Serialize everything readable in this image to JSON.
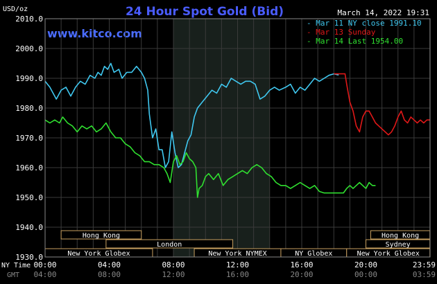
{
  "chart_data": {
    "type": "line",
    "title": "24 Hour Spot Gold (Bid)",
    "website": "www.kitco.com",
    "timestamp": "March 14, 2022 19:31",
    "ylabel": "USD/oz",
    "ylim": [
      1930,
      2010
    ],
    "y_ticks": [
      "1930.0",
      "1940.0",
      "1950.0",
      "1960.0",
      "1970.0",
      "1980.0",
      "1990.0",
      "2000.0",
      "2010.0"
    ],
    "x_axis_name": "NY Time",
    "x_ticks": [
      "00:00",
      "04:00",
      "08:00",
      "12:00",
      "16:00",
      "20:00",
      "23:59"
    ],
    "x2_axis_name": "GMT",
    "x2_ticks": [
      "04:00",
      "08:00",
      "12:00",
      "16:00",
      "20:00",
      "00:00",
      "03:59"
    ],
    "grid": true,
    "legend_position": "top-right",
    "highlight_band": [
      8.0,
      14.0
    ],
    "sessions": [
      {
        "label": "Hong Kong",
        "start": 1.0,
        "end": 6.0,
        "row": 1
      },
      {
        "label": "London",
        "start": 3.8,
        "end": 11.7,
        "row": 2
      },
      {
        "label": "New York Globex",
        "start": 0.0,
        "end": 6.7,
        "row": 3
      },
      {
        "label": "New York NYMEX",
        "start": 9.3,
        "end": 14.7,
        "row": 3
      },
      {
        "label": "NY Globex",
        "start": 14.7,
        "end": 18.8,
        "row": 3
      },
      {
        "label": "Hong Kong",
        "start": 20.3,
        "end": 23.99,
        "row": 1
      },
      {
        "label": "Sydney",
        "start": 20.0,
        "end": 23.99,
        "row": 2
      },
      {
        "label": "New York Globex",
        "start": 18.8,
        "end": 23.99,
        "row": 3
      }
    ],
    "series": [
      {
        "name": "Mar 11 NY close 1991.10",
        "color": "#40c8f0",
        "x": [
          0.0,
          0.3,
          0.7,
          1.0,
          1.3,
          1.6,
          1.9,
          2.2,
          2.5,
          2.8,
          3.1,
          3.3,
          3.5,
          3.7,
          3.9,
          4.1,
          4.3,
          4.6,
          4.8,
          5.1,
          5.4,
          5.7,
          6.0,
          6.2,
          6.4,
          6.5,
          6.7,
          6.9,
          7.1,
          7.3,
          7.5,
          7.7,
          7.9,
          8.1,
          8.3,
          8.5,
          8.7,
          8.9,
          9.1,
          9.3,
          9.5,
          9.8,
          10.1,
          10.4,
          10.7,
          11.0,
          11.3,
          11.6,
          11.9,
          12.2,
          12.5,
          12.8,
          13.1,
          13.4,
          13.7,
          14.0,
          14.3,
          14.6,
          15.0,
          15.3,
          15.6,
          15.9,
          16.2,
          16.5,
          16.8,
          17.1,
          17.4,
          17.7,
          18.0,
          18.3
        ],
        "values": [
          1989,
          1987,
          1983,
          1986,
          1987,
          1984,
          1987,
          1989,
          1988,
          1991,
          1990,
          1992,
          1991,
          1994,
          1993,
          1995,
          1992,
          1993,
          1990,
          1992,
          1992,
          1994,
          1992,
          1990,
          1986,
          1978,
          1970,
          1973,
          1966,
          1966,
          1960,
          1962,
          1972,
          1965,
          1960,
          1961,
          1965,
          1969,
          1971,
          1977,
          1980,
          1982,
          1984,
          1986,
          1985,
          1988,
          1987,
          1990,
          1989,
          1988,
          1989,
          1989,
          1988,
          1983,
          1984,
          1986,
          1987,
          1986,
          1987,
          1988,
          1985,
          1987,
          1986,
          1988,
          1990,
          1989,
          1990,
          1991,
          1991.5,
          1991.1
        ]
      },
      {
        "name": "Mar 13 Sunday",
        "color": "#e01818",
        "x": [
          18.0,
          18.4,
          18.7,
          18.8,
          18.9,
          19.0,
          19.2,
          19.4,
          19.6,
          19.8,
          20.0,
          20.2,
          20.4,
          20.6,
          20.8,
          21.0,
          21.2,
          21.4,
          21.6,
          21.8,
          22.0,
          22.2,
          22.4,
          22.6,
          22.8,
          23.0,
          23.2,
          23.4,
          23.6,
          23.8,
          23.99
        ],
        "values": [
          1991.5,
          1991.5,
          1991.5,
          1988,
          1985,
          1982,
          1979,
          1974,
          1972,
          1977,
          1979,
          1979,
          1977,
          1975,
          1974,
          1973,
          1972,
          1971,
          1972,
          1974,
          1977,
          1979,
          1976,
          1975,
          1977,
          1976,
          1975,
          1976,
          1975,
          1976,
          1976
        ]
      },
      {
        "name": "Mar 14 Last 1954.00",
        "color": "#30e030",
        "x": [
          0.0,
          0.3,
          0.6,
          0.9,
          1.1,
          1.4,
          1.7,
          2.0,
          2.3,
          2.6,
          2.9,
          3.2,
          3.5,
          3.8,
          4.1,
          4.4,
          4.7,
          5.0,
          5.3,
          5.6,
          5.9,
          6.2,
          6.5,
          6.8,
          7.1,
          7.4,
          7.6,
          7.8,
          8.0,
          8.2,
          8.4,
          8.6,
          8.8,
          9.0,
          9.2,
          9.4,
          9.5,
          9.6,
          9.8,
          10.0,
          10.2,
          10.5,
          10.8,
          11.1,
          11.4,
          11.7,
          12.0,
          12.3,
          12.6,
          12.9,
          13.2,
          13.5,
          13.8,
          14.1,
          14.4,
          14.7,
          15.0,
          15.3,
          15.6,
          15.9,
          16.2,
          16.5,
          16.8,
          17.1,
          17.4,
          17.7,
          18.0,
          18.3,
          18.6,
          18.8,
          19.0,
          19.2,
          19.4,
          19.6,
          19.8,
          20.0,
          20.2,
          20.4,
          20.6
        ],
        "values": [
          1976,
          1975,
          1976,
          1975,
          1977,
          1975,
          1974,
          1972,
          1974,
          1973,
          1974,
          1972,
          1973,
          1975,
          1972,
          1970,
          1970,
          1968,
          1967,
          1965,
          1964,
          1962,
          1962,
          1961,
          1961,
          1960,
          1958,
          1955,
          1962,
          1964,
          1961,
          1962,
          1965,
          1963,
          1962,
          1960,
          1950,
          1953,
          1954,
          1957,
          1958,
          1956,
          1958,
          1954,
          1956,
          1957,
          1958,
          1959,
          1958,
          1960,
          1961,
          1960,
          1958,
          1957,
          1955,
          1954,
          1954,
          1953,
          1954,
          1955,
          1954,
          1953,
          1954,
          1952,
          1951.5,
          1951.5,
          1951.5,
          1951.5,
          1951.5,
          1953,
          1954,
          1953,
          1954,
          1955,
          1954,
          1953,
          1955,
          1954,
          1954
        ]
      }
    ]
  }
}
